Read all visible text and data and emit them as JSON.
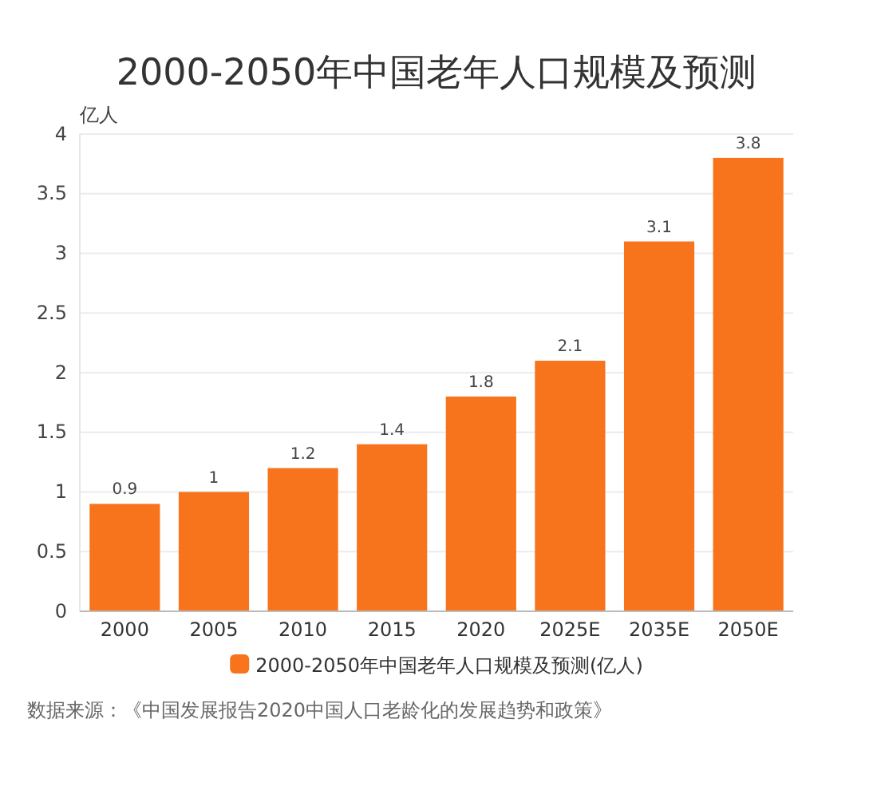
{
  "chart_data": {
    "type": "bar",
    "title": "2000-2050年中国老年人口规模及预测",
    "ylabel": "亿人",
    "categories": [
      "2000",
      "2005",
      "2010",
      "2015",
      "2020",
      "2025E",
      "2035E",
      "2050E"
    ],
    "series": [
      {
        "name": "2000-2050年中国老年人口规模及预测(亿人)",
        "color": "#f7731c",
        "values": [
          0.9,
          1,
          1.2,
          1.4,
          1.8,
          2.1,
          3.1,
          3.8
        ]
      }
    ],
    "ylim": [
      0,
      4
    ],
    "yticks": [
      0,
      0.5,
      1,
      1.5,
      2,
      2.5,
      3,
      3.5,
      4
    ],
    "grid": "y",
    "legend": "bottom",
    "data_labels": true,
    "annotations": [
      "数据来源：《中国发展报告2020中国人口老龄化的发展趋势和政策》"
    ]
  }
}
